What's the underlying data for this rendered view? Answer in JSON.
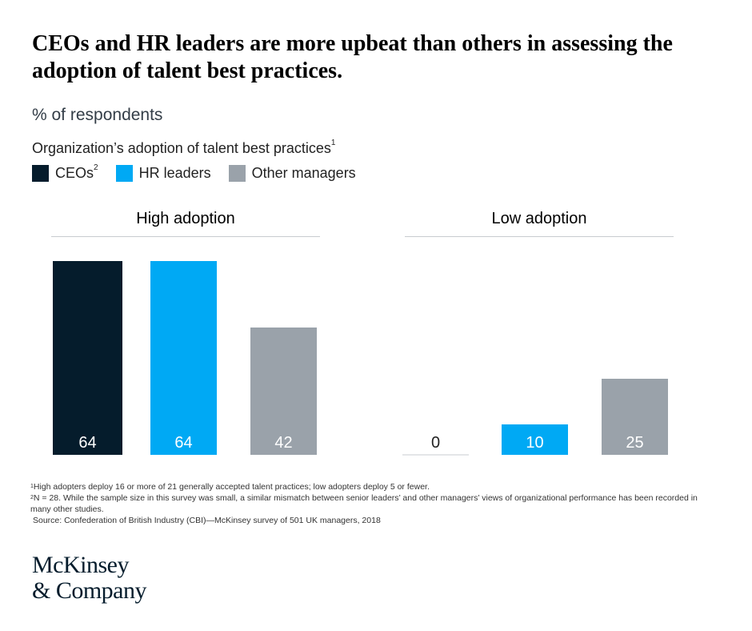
{
  "title": "CEOs and HR leaders are more upbeat than others in assessing the adoption of talent best practices.",
  "subtitle": "% of respondents",
  "legend": {
    "title": "Organization’s adoption of talent best practices",
    "title_sup": "1",
    "items": [
      {
        "label": "CEOs",
        "sup": "2",
        "color": "#051c2c"
      },
      {
        "label": "HR leaders",
        "sup": "",
        "color": "#00a9f4"
      },
      {
        "label": "Other managers",
        "sup": "",
        "color": "#9aa2aa"
      }
    ]
  },
  "chart_data": {
    "type": "bar",
    "categories": [
      "CEOs",
      "HR leaders",
      "Other managers"
    ],
    "panels": [
      {
        "title": "High adoption",
        "values": [
          64,
          64,
          42
        ]
      },
      {
        "title": "Low adoption",
        "values": [
          0,
          10,
          25
        ]
      }
    ],
    "ylim": [
      0,
      64
    ],
    "colors": [
      "#051c2c",
      "#00a9f4",
      "#9aa2aa"
    ]
  },
  "footnotes": [
    {
      "sup": "1",
      "text": "High adopters deploy 16 or more of 21 generally accepted talent practices; low adopters deploy 5 or fewer."
    },
    {
      "sup": "2",
      "text": "N = 28. While the sample size in this survey was small, a similar mismatch between senior leaders’ and other managers’ views of organizational performance has been recorded in many other studies."
    },
    {
      "sup": "",
      "text": "Source: Confederation of British Industry (CBI)—McKinsey survey of 501 UK managers, 2018"
    }
  ],
  "logo": {
    "line1": "McKinsey",
    "line2": "& Company"
  }
}
